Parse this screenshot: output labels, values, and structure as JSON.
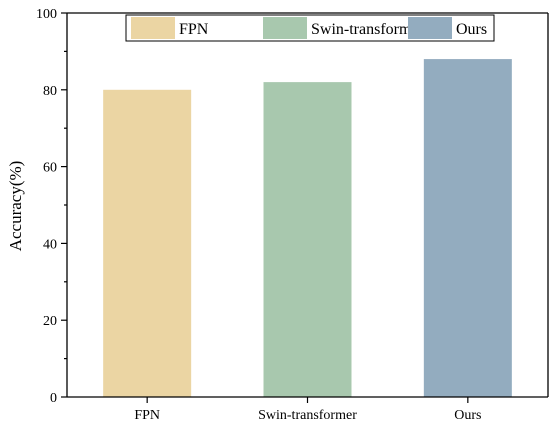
{
  "chart_data": {
    "type": "bar",
    "categories": [
      "FPN",
      "Swin-transformer",
      "Ours"
    ],
    "values": [
      80,
      82,
      88
    ],
    "ylabel": "Accuracy(%)",
    "xlabel": "",
    "ylim": [
      0,
      100
    ],
    "yticks": [
      0,
      20,
      40,
      60,
      80,
      100
    ],
    "grid": false,
    "legend": {
      "position": "top",
      "entries": [
        "FPN",
        "Swin-transformer",
        "Ours"
      ]
    },
    "colors": [
      "#ebd5a3",
      "#a8c8ae",
      "#93acbf"
    ]
  }
}
